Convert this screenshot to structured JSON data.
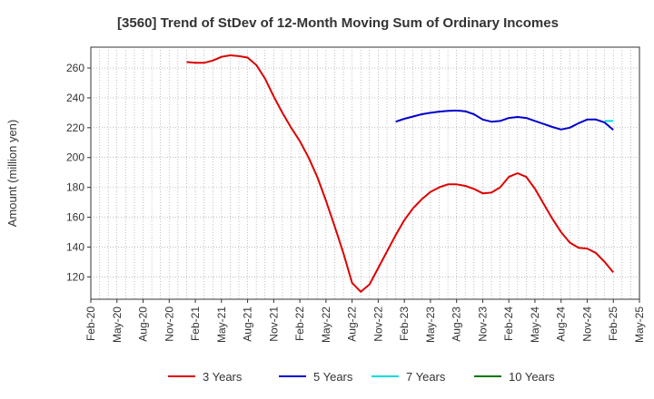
{
  "chart_data": {
    "type": "line",
    "title": "[3560]  Trend of StDev of 12-Month Moving Sum of Ordinary Incomes",
    "ylabel": "Amount (million yen)",
    "xlabel": "",
    "ylim": [
      105,
      274
    ],
    "yticks": [
      120,
      140,
      160,
      180,
      200,
      220,
      240,
      260
    ],
    "x_start": "Feb-20",
    "x_end": "May-25",
    "xticks": [
      "Feb-20",
      "May-20",
      "Aug-20",
      "Nov-20",
      "Feb-21",
      "May-21",
      "Aug-21",
      "Nov-21",
      "Feb-22",
      "May-22",
      "Aug-22",
      "Nov-22",
      "Feb-23",
      "May-23",
      "Aug-23",
      "Nov-23",
      "Feb-24",
      "May-24",
      "Aug-24",
      "Nov-24",
      "Feb-25",
      "May-25"
    ],
    "grid": true,
    "legend_position": "bottom",
    "series": [
      {
        "name": "3 Years",
        "color": "#dd0000",
        "points": [
          [
            "Jan-21",
            264
          ],
          [
            "Feb-21",
            263.5
          ],
          [
            "Mar-21",
            263.5
          ],
          [
            "Apr-21",
            265
          ],
          [
            "May-21",
            267.5
          ],
          [
            "Jun-21",
            268.5
          ],
          [
            "Jul-21",
            268
          ],
          [
            "Aug-21",
            267
          ],
          [
            "Sep-21",
            262
          ],
          [
            "Oct-21",
            253
          ],
          [
            "Nov-21",
            241
          ],
          [
            "Dec-21",
            230
          ],
          [
            "Jan-22",
            220
          ],
          [
            "Feb-22",
            211
          ],
          [
            "Mar-22",
            200
          ],
          [
            "Apr-22",
            187
          ],
          [
            "May-22",
            171
          ],
          [
            "Jun-22",
            154
          ],
          [
            "Jul-22",
            136
          ],
          [
            "Aug-22",
            116
          ],
          [
            "Sep-22",
            110
          ],
          [
            "Oct-22",
            115
          ],
          [
            "Nov-22",
            126
          ],
          [
            "Dec-22",
            137
          ],
          [
            "Jan-23",
            148
          ],
          [
            "Feb-23",
            158
          ],
          [
            "Mar-23",
            166
          ],
          [
            "Apr-23",
            172
          ],
          [
            "May-23",
            177
          ],
          [
            "Jun-23",
            180
          ],
          [
            "Jul-23",
            182
          ],
          [
            "Aug-23",
            182
          ],
          [
            "Sep-23",
            181
          ],
          [
            "Oct-23",
            179
          ],
          [
            "Nov-23",
            176
          ],
          [
            "Dec-23",
            176.5
          ],
          [
            "Jan-24",
            180
          ],
          [
            "Feb-24",
            187
          ],
          [
            "Mar-24",
            189.5
          ],
          [
            "Apr-24",
            187
          ],
          [
            "May-24",
            179
          ],
          [
            "Jun-24",
            169
          ],
          [
            "Jul-24",
            159
          ],
          [
            "Aug-24",
            150
          ],
          [
            "Sep-24",
            143
          ],
          [
            "Oct-24",
            139.5
          ],
          [
            "Nov-24",
            139
          ],
          [
            "Dec-24",
            136
          ],
          [
            "Jan-25",
            130
          ],
          [
            "Feb-25",
            123
          ]
        ]
      },
      {
        "name": "5 Years",
        "color": "#0000cc",
        "points": [
          [
            "Jan-23",
            224
          ],
          [
            "Feb-23",
            226
          ],
          [
            "Mar-23",
            227.5
          ],
          [
            "Apr-23",
            229
          ],
          [
            "May-23",
            230
          ],
          [
            "Jun-23",
            230.8
          ],
          [
            "Jul-23",
            231.3
          ],
          [
            "Aug-23",
            231.5
          ],
          [
            "Sep-23",
            231
          ],
          [
            "Oct-23",
            229
          ],
          [
            "Nov-23",
            225.5
          ],
          [
            "Dec-23",
            224
          ],
          [
            "Jan-24",
            224.5
          ],
          [
            "Feb-24",
            226.5
          ],
          [
            "Mar-24",
            227.2
          ],
          [
            "Apr-24",
            226.5
          ],
          [
            "May-24",
            224.5
          ],
          [
            "Jun-24",
            222.5
          ],
          [
            "Jul-24",
            220.5
          ],
          [
            "Aug-24",
            218.8
          ],
          [
            "Sep-24",
            220
          ],
          [
            "Oct-24",
            223
          ],
          [
            "Nov-24",
            225.5
          ],
          [
            "Dec-24",
            225.5
          ],
          [
            "Jan-25",
            223.5
          ],
          [
            "Feb-25",
            218.5
          ]
        ]
      },
      {
        "name": "7 Years",
        "color": "#00dddd",
        "points": [
          [
            "Jan-25",
            224.5
          ],
          [
            "Feb-25",
            224.5
          ]
        ]
      },
      {
        "name": "10 Years",
        "color": "#007700",
        "points": []
      }
    ]
  }
}
